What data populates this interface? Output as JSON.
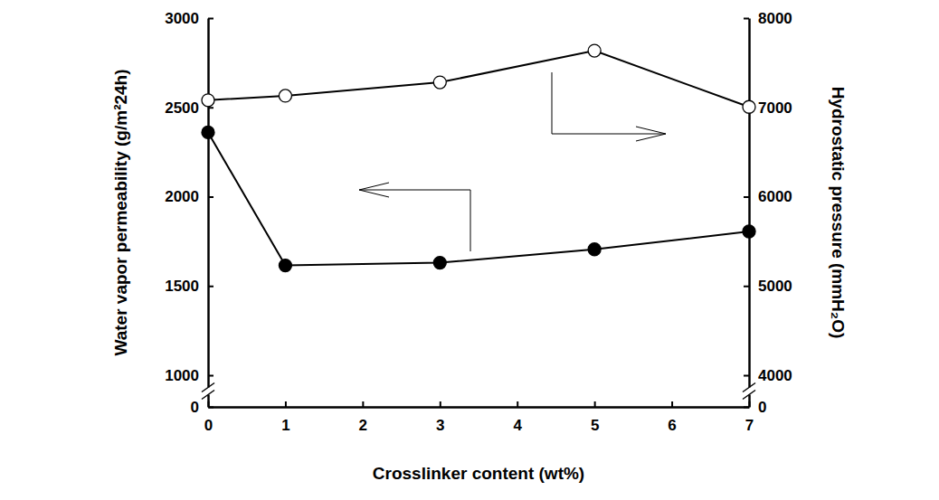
{
  "chart_data": {
    "type": "line",
    "x_label": "Crosslinker content (wt%)",
    "y_label": "Water vapor permeability (g/m²24h)",
    "y2_label": "Hydrostatic pressure (mmH₂O)",
    "x": [
      0,
      1,
      3,
      5,
      7
    ],
    "xlim": [
      0,
      7
    ],
    "xticks": [
      0,
      1,
      2,
      3,
      4,
      5,
      6,
      7
    ],
    "ylim": [
      0,
      3000
    ],
    "yticks": [
      0,
      1000,
      1500,
      2000,
      2500,
      3000
    ],
    "y2lim": [
      0,
      8000
    ],
    "y2ticks": [
      0,
      4000,
      5000,
      6000,
      7000,
      8000
    ],
    "series": [
      {
        "color": "#000000",
        "marker": "circle",
        "values": [
          2360,
          1615,
          1630,
          1705,
          1805
        ]
      },
      {
        "color": "#000000",
        "marker": "open-circle",
        "axis": "y2",
        "values": [
          7080,
          7130,
          7280,
          7635,
          7005
        ]
      }
    ]
  }
}
